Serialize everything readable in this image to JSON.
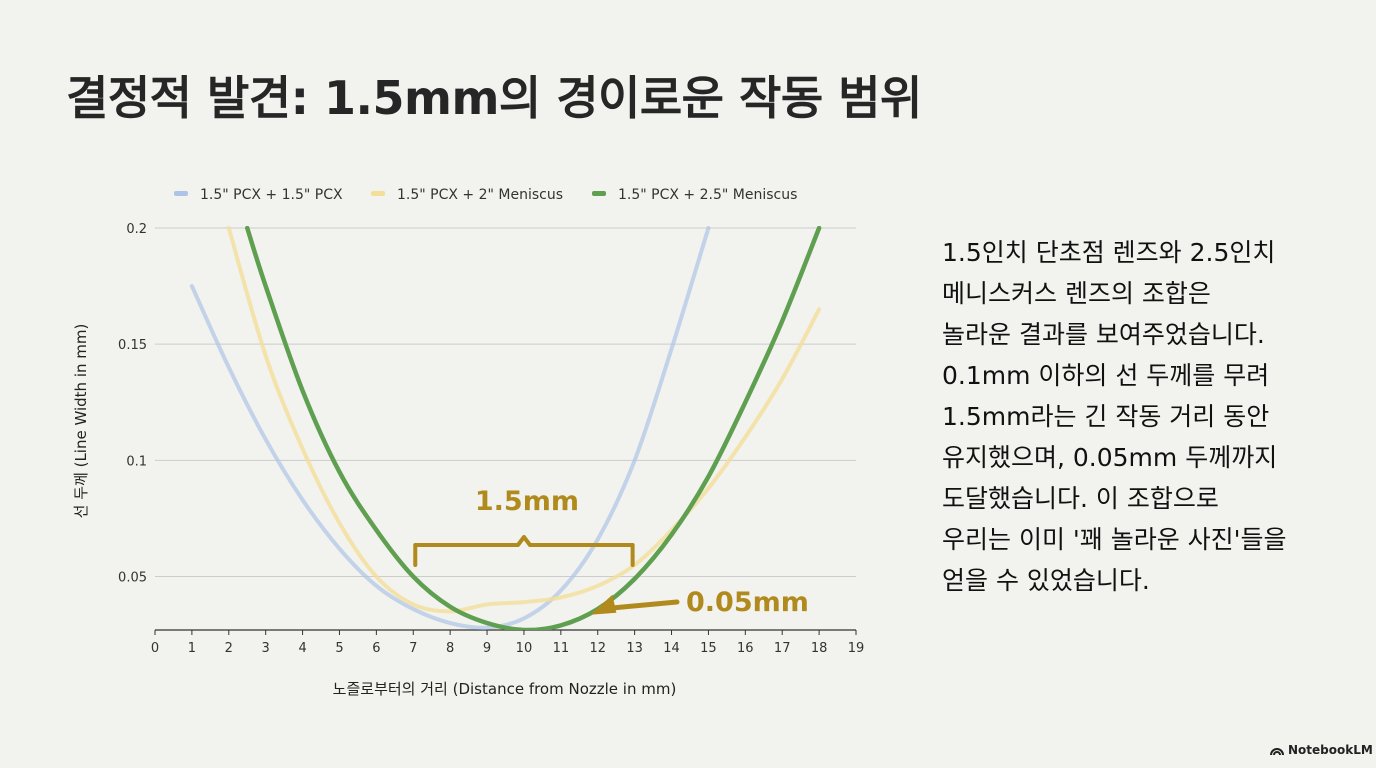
{
  "title": "결정적 발견: 1.5mm의 경이로운 작동 범위",
  "body_lines": [
    "1.5인치 단초점 렌즈와 2.5인치",
    "메니스커스 렌즈의 조합은",
    "놀라운 결과를 보여주었습니다.",
    "0.1mm 이하의 선 두께를 무려",
    "1.5mm라는 긴 작동 거리 동안",
    "유지했으며, 0.05mm 두께까지",
    "도달했습니다. 이 조합으로",
    "우리는 이미 '꽤 놀라운 사진'들을",
    "얻을 수 있었습니다."
  ],
  "brand": "NotebookLM",
  "colors": {
    "series1": "#aec4e6",
    "series2": "#f3df9a",
    "series3": "#5f9f50",
    "annotation": "#b08a1c",
    "grid": "#cccccc"
  },
  "chart_data": {
    "type": "line",
    "xlabel": "노즐로부터의 거리 (Distance from Nozzle in mm)",
    "ylabel": "선 두께 (Line Width in mm)",
    "xlim": [
      0,
      19
    ],
    "ylim": [
      0.027,
      0.2
    ],
    "x_ticks": [
      0,
      1,
      2,
      3,
      4,
      5,
      6,
      7,
      8,
      9,
      10,
      11,
      12,
      13,
      14,
      15,
      16,
      17,
      18,
      19
    ],
    "y_ticks": [
      0.05,
      0.1,
      0.15,
      0.2
    ],
    "y_tick_labels": [
      "0.05",
      "0.1",
      "0.15",
      "0.2"
    ],
    "grid": "horizontal",
    "legend_position": "top",
    "series": [
      {
        "name": "1.5\" PCX + 1.5\" PCX",
        "x": [
          1,
          2,
          3,
          4,
          5,
          6,
          7,
          8,
          9,
          10,
          11,
          12,
          13,
          14,
          15
        ],
        "y": [
          0.175,
          0.14,
          0.109,
          0.083,
          0.062,
          0.046,
          0.036,
          0.03,
          0.028,
          0.032,
          0.044,
          0.066,
          0.1,
          0.148,
          0.2
        ]
      },
      {
        "name": "1.5\" PCX + 2\" Meniscus",
        "x": [
          2,
          3,
          4,
          5,
          6,
          7,
          8,
          9,
          10,
          11,
          12,
          13,
          14,
          15,
          16,
          17,
          18
        ],
        "y": [
          0.2,
          0.145,
          0.105,
          0.073,
          0.05,
          0.038,
          0.035,
          0.038,
          0.039,
          0.041,
          0.046,
          0.055,
          0.07,
          0.088,
          0.11,
          0.135,
          0.165
        ]
      },
      {
        "name": "1.5\" PCX + 2.5\" Meniscus",
        "x": [
          2.5,
          3,
          4,
          5,
          6,
          7,
          8,
          9,
          10,
          11,
          12,
          13,
          14,
          15,
          16,
          17,
          18
        ],
        "y": [
          0.2,
          0.175,
          0.13,
          0.095,
          0.07,
          0.05,
          0.037,
          0.03,
          0.027,
          0.029,
          0.036,
          0.049,
          0.068,
          0.093,
          0.125,
          0.16,
          0.2
        ]
      }
    ],
    "annotations": [
      {
        "text": "1.5mm",
        "type": "bracket",
        "x_start": 7,
        "x_end": 13,
        "y": 0.055
      },
      {
        "text": "0.05mm",
        "type": "arrow",
        "target_x": 11.8,
        "target_y": 0.031
      }
    ]
  }
}
